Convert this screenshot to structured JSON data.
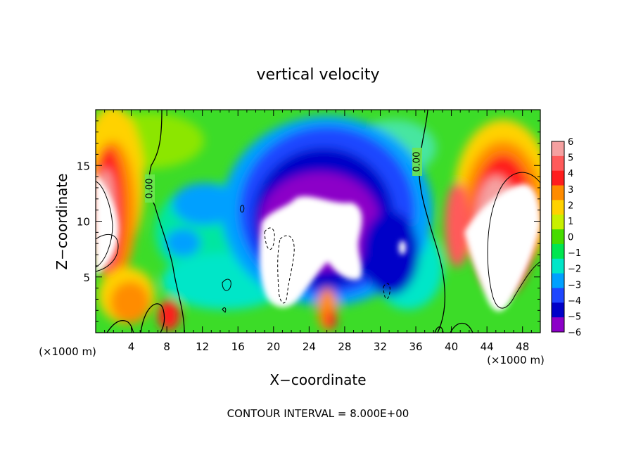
{
  "chart_data": {
    "type": "heatmap",
    "title": "vertical velocity",
    "xlabel": "X−coordinate",
    "ylabel": "Z−coordinate",
    "x_unit_left": "(×1000 m)",
    "x_unit_right": "(×1000 m)",
    "footer": "CONTOUR INTERVAL = 8.000E+00",
    "contour_label": "0.00",
    "xlim": [
      0,
      50
    ],
    "ylim": [
      0,
      20
    ],
    "x_ticks": [
      4,
      8,
      12,
      16,
      20,
      24,
      28,
      32,
      36,
      40,
      44,
      48
    ],
    "y_ticks": [
      5,
      10,
      15
    ],
    "colorbar": {
      "levels": [
        6,
        5,
        4,
        3,
        2,
        1,
        0,
        -1,
        -2,
        -3,
        -4,
        -5,
        -6
      ],
      "labels": [
        "6",
        "5",
        "4",
        "3",
        "2",
        "1",
        "0",
        "−1",
        "−2",
        "−3",
        "−4",
        "−5",
        "−6"
      ],
      "colors": [
        "#f5a0a0",
        "#ff5a5a",
        "#ff1e1e",
        "#ff8c00",
        "#ffd200",
        "#c8f000",
        "#46dc00",
        "#00e650",
        "#00e6c8",
        "#00a0ff",
        "#1e46ff",
        "#0000c8",
        "#8c00c8"
      ]
    },
    "features": [
      {
        "kind": "updraft",
        "x": 2.5,
        "z": 11.5,
        "w": 6
      },
      {
        "kind": "updraft",
        "x": 46.5,
        "z": 10,
        "w": 6
      },
      {
        "kind": "updraft",
        "x": 7.5,
        "z": 1.2,
        "w": 5
      },
      {
        "kind": "updraft",
        "x": 26,
        "z": 1.5,
        "w": 4
      },
      {
        "kind": "downdraft",
        "x": 24,
        "z": 8.5,
        "w": -6
      },
      {
        "kind": "downdraft",
        "x": 34,
        "z": 7,
        "w": -5
      },
      {
        "kind": "weak_downdraft",
        "x": 12,
        "z": 10,
        "w": -2
      }
    ]
  }
}
